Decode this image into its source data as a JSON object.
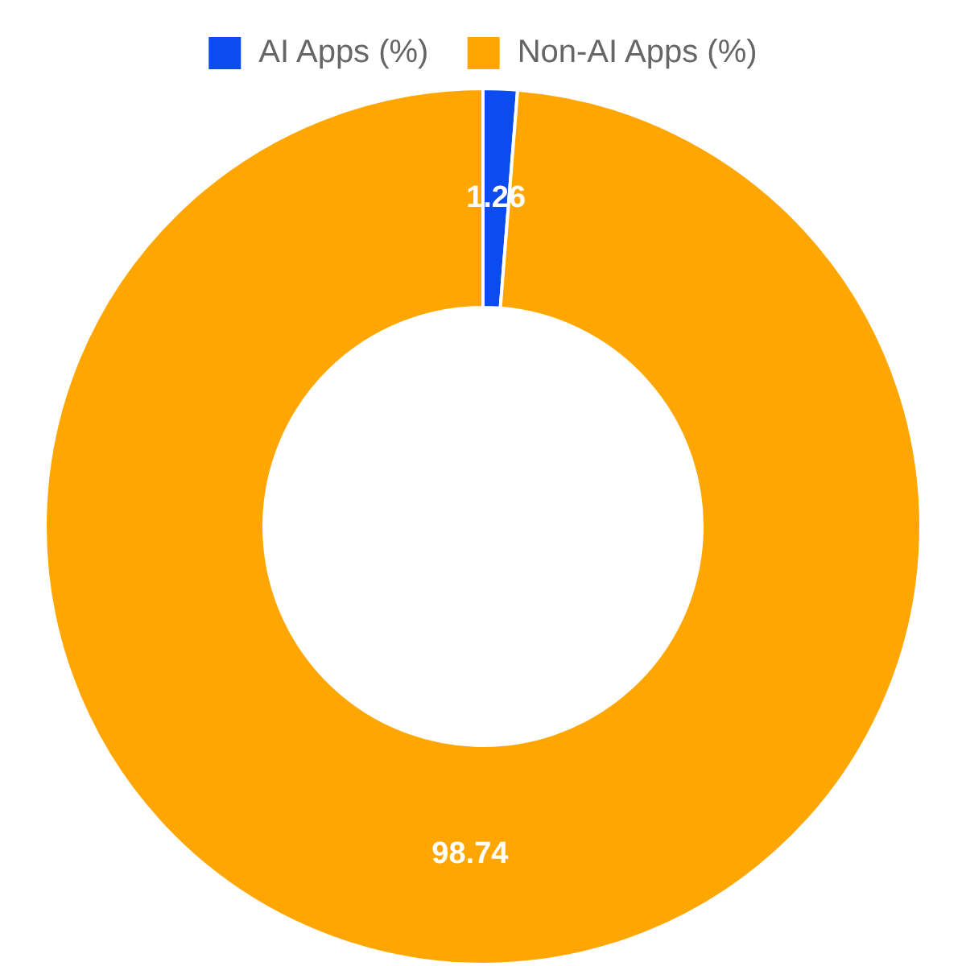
{
  "chart_data": {
    "type": "donut",
    "categories": [
      "AI Apps (%)",
      "Non-AI Apps (%)"
    ],
    "values": [
      1.26,
      98.74
    ],
    "colors": [
      "#0b4cf0",
      "#ffa600"
    ],
    "legend": "top",
    "data_labels": true
  }
}
